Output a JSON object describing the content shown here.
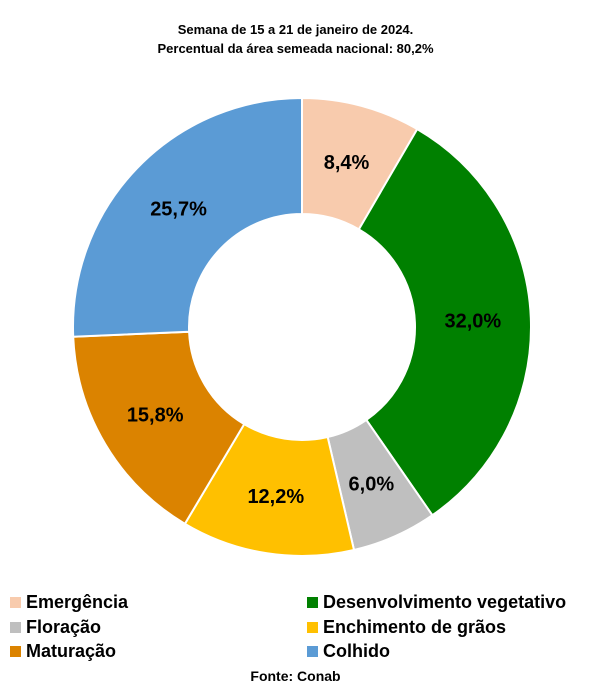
{
  "chart_data": {
    "type": "pie",
    "variant": "donut",
    "title": "Semana de 15 a 21 de janeiro de 2024.",
    "subtitle": "Percentual da área semeada nacional: 80,2%",
    "slices": [
      {
        "name": "Emergência",
        "value": 8.4,
        "label": "8,4%",
        "color": "#F8CBAD"
      },
      {
        "name": "Desenvolvimento vegetativo",
        "value": 32.0,
        "label": "32,0%",
        "color": "#008000"
      },
      {
        "name": "Floração",
        "value": 6.0,
        "label": "6,0%",
        "color": "#BFBFBF"
      },
      {
        "name": "Enchimento de grãos",
        "value": 12.2,
        "label": "12,2%",
        "color": "#FFC000"
      },
      {
        "name": "Maturação",
        "value": 15.8,
        "label": "15,8%",
        "color": "#DB8300"
      },
      {
        "name": "Colhido",
        "value": 25.7,
        "label": "25,7%",
        "color": "#5B9BD5"
      }
    ],
    "legend_placement": "bottom",
    "source": "Fonte: Conab"
  }
}
